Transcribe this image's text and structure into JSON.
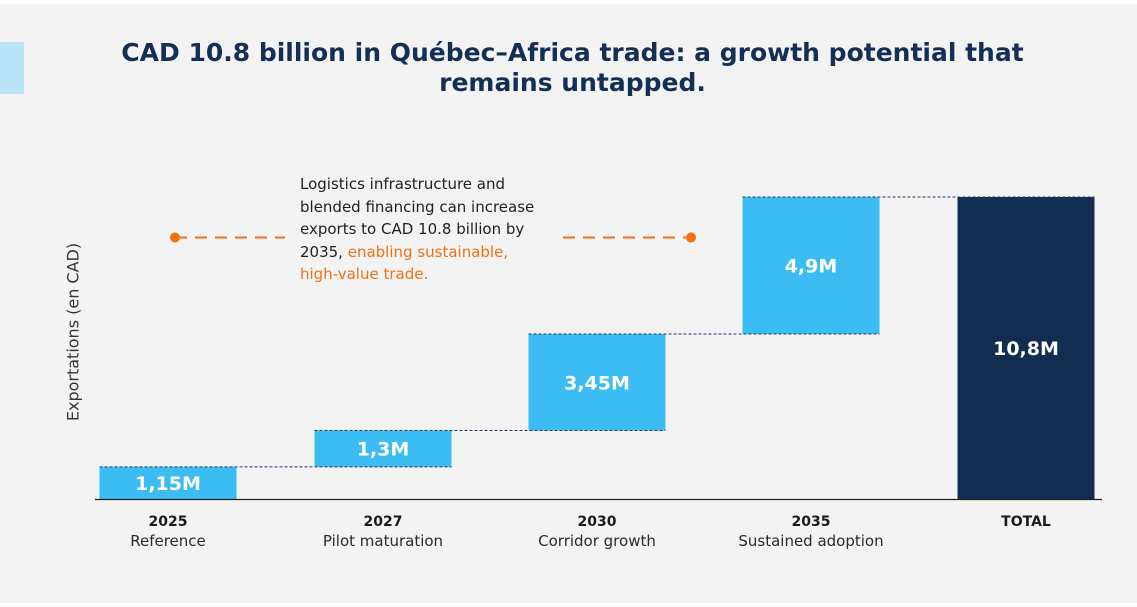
{
  "title": "CAD 10.8 billion in Québec–Africa trade: a growth potential that remains untapped.",
  "annotation": {
    "text_main": "Logistics infrastructure and blended financing can increase exports to CAD 10.8 billion by 2035,",
    "text_highlight": "enabling sustainable, high-value trade."
  },
  "colors": {
    "increment_bar": "#3bbdf4",
    "total_bar": "#132c51",
    "title": "#142f55",
    "highlight": "#f07014",
    "accent_tab": "#b9e4f7"
  },
  "chart_data": {
    "type": "bar",
    "subtype": "waterfall",
    "title": "CAD 10.8 billion in Québec–Africa trade: a growth potential that remains untapped.",
    "ylabel": "Exportations (en CAD)",
    "xlabel": "",
    "ylim": [
      0,
      10.8
    ],
    "grid": false,
    "categories": [
      {
        "year": "2025",
        "label": "Reference"
      },
      {
        "year": "2027",
        "label": "Pilot maturation"
      },
      {
        "year": "2030",
        "label": "Corridor growth"
      },
      {
        "year": "2035",
        "label": "Sustained adoption"
      },
      {
        "year": "TOTAL",
        "label": ""
      }
    ],
    "values": [
      1.15,
      1.3,
      3.45,
      4.9,
      10.8
    ],
    "value_labels": [
      "1,15M",
      "1,3M",
      "3,45M",
      "4,9M",
      "10,8M"
    ],
    "is_total": [
      false,
      false,
      false,
      false,
      true
    ]
  }
}
